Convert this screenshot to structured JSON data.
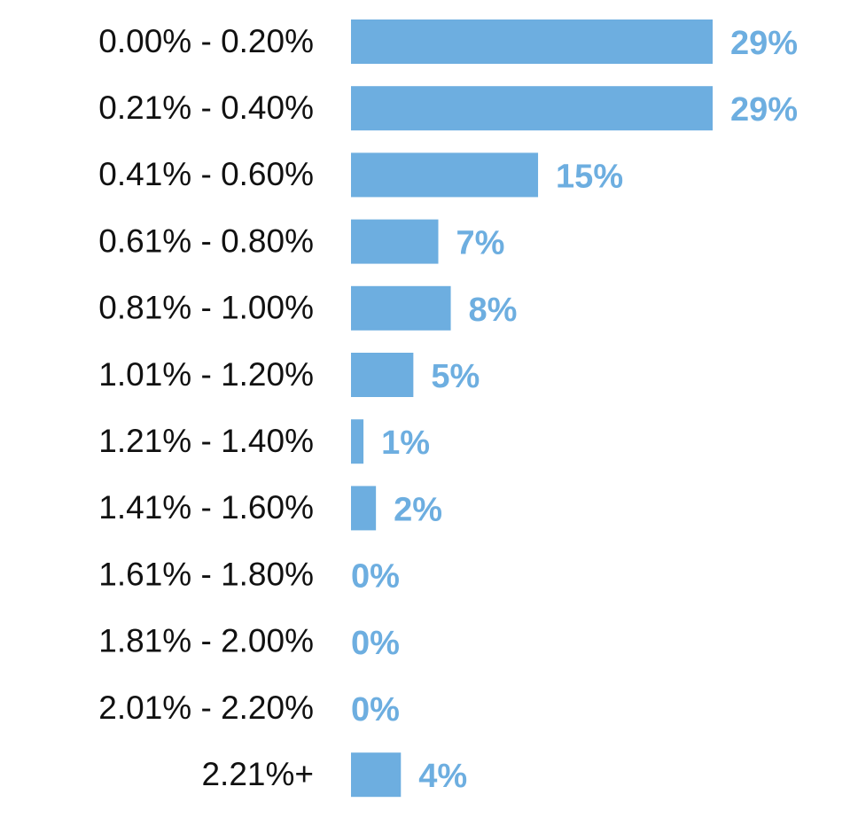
{
  "chart_data": {
    "type": "bar",
    "orientation": "horizontal",
    "categories": [
      "0.00% - 0.20%",
      "0.21% - 0.40%",
      "0.41% - 0.60%",
      "0.61% - 0.80%",
      "0.81% - 1.00%",
      "1.01% - 1.20%",
      "1.21% - 1.40%",
      "1.41% - 1.60%",
      "1.61% - 1.80%",
      "1.81% - 2.00%",
      "2.01% - 2.20%",
      "2.21%+"
    ],
    "values": [
      29,
      29,
      15,
      7,
      8,
      5,
      1,
      2,
      0,
      0,
      0,
      4
    ],
    "value_labels": [
      "29%",
      "29%",
      "15%",
      "7%",
      "8%",
      "5%",
      "1%",
      "2%",
      "0%",
      "0%",
      "0%",
      "4%"
    ],
    "color": "#6daee0"
  }
}
